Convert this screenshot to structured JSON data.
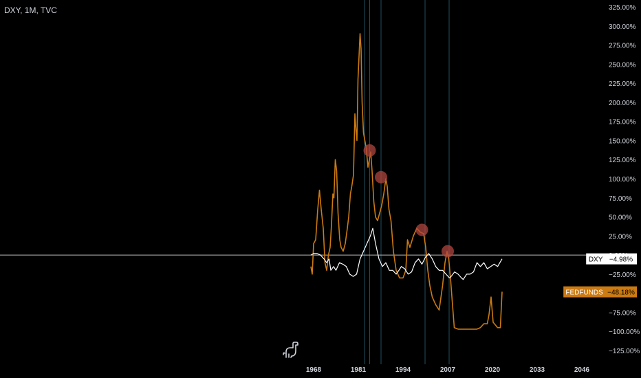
{
  "header": {
    "title": "DXY, 1M, TVC"
  },
  "colors": {
    "background": "#000000",
    "dxy": "#ffffff",
    "fedfunds": "#cc7a12",
    "vline": "#1f4f5f",
    "marker": "#b0453f",
    "axis_text": "#d1d4dc"
  },
  "icons": {
    "logo": "dinosaur-icon"
  },
  "chart_data": {
    "type": "line",
    "title": "DXY, 1M, TVC",
    "xlabel": "",
    "ylabel": "",
    "x_ticks": [
      "1968",
      "1981",
      "1994",
      "2007",
      "2020",
      "2033",
      "2046"
    ],
    "x_tick_values": [
      1968,
      1981,
      1994,
      2007,
      2020,
      2033,
      2046
    ],
    "y_ticks": [
      "325.00%",
      "300.00%",
      "275.00%",
      "250.00%",
      "225.00%",
      "200.00%",
      "175.00%",
      "150.00%",
      "125.00%",
      "100.00%",
      "75.00%",
      "50.00%",
      "25.00%",
      "0.00%",
      "−25.00%",
      "−50.00%",
      "−75.00%",
      "−100.00%",
      "−125.00%"
    ],
    "y_tick_values": [
      325,
      300,
      275,
      250,
      225,
      200,
      175,
      150,
      125,
      100,
      75,
      50,
      25,
      0,
      -25,
      -50,
      -75,
      -100,
      -125
    ],
    "ylim": [
      -130,
      330
    ],
    "xlim": [
      1967,
      2051
    ],
    "grid": false,
    "series": [
      {
        "name": "DXY",
        "last_label": "−4.98%",
        "last_value": -4.98,
        "x": [
          1967.2,
          1968.0,
          1969.0,
          1970.0,
          1971.0,
          1971.8,
          1972.5,
          1973.0,
          1973.8,
          1974.5,
          1975.5,
          1976.5,
          1977.5,
          1978.5,
          1979.5,
          1980.5,
          1981.5,
          1982.5,
          1983.5,
          1984.5,
          1985.2,
          1986.0,
          1987.0,
          1988.0,
          1989.0,
          1990.0,
          1991.0,
          1992.0,
          1992.8,
          1993.5,
          1994.5,
          1995.5,
          1996.5,
          1997.5,
          1998.5,
          1999.5,
          2000.5,
          2001.5,
          2002.5,
          2003.5,
          2004.5,
          2005.5,
          2006.5,
          2007.5,
          2008.0,
          2009.0,
          2010.0,
          2011.0,
          2011.5,
          2012.5,
          2013.5,
          2014.5,
          2015.5,
          2016.5,
          2017.5,
          2018.5,
          2019.5,
          2020.5,
          2021.5,
          2022.8
        ],
        "y": [
          0,
          2,
          2,
          0,
          -5,
          -10,
          -5,
          -20,
          -15,
          -20,
          -10,
          -12,
          -15,
          -25,
          -28,
          -25,
          -5,
          5,
          15,
          25,
          35,
          15,
          -5,
          -15,
          -10,
          -20,
          -20,
          -25,
          -20,
          -15,
          -18,
          -25,
          -22,
          -10,
          -5,
          -12,
          -3,
          2,
          -5,
          -15,
          -20,
          -20,
          -25,
          -30,
          -28,
          -22,
          -25,
          -30,
          -32,
          -25,
          -25,
          -22,
          -10,
          -15,
          -10,
          -18,
          -15,
          -12,
          -15,
          -5
        ]
      },
      {
        "name": "FEDFUNDS",
        "last_label": "−48.18%",
        "last_value": -48.18,
        "x": [
          1967.2,
          1967.6,
          1968.0,
          1968.6,
          1969.2,
          1969.7,
          1970.2,
          1970.8,
          1971.3,
          1971.8,
          1972.3,
          1972.8,
          1973.2,
          1973.6,
          1973.9,
          1974.3,
          1974.7,
          1975.1,
          1975.6,
          1976.0,
          1976.6,
          1977.2,
          1977.8,
          1978.2,
          1978.7,
          1979.1,
          1979.6,
          1980.0,
          1980.3,
          1980.6,
          1980.9,
          1981.2,
          1981.5,
          1981.8,
          1982.1,
          1982.5,
          1982.9,
          1983.3,
          1983.8,
          1984.2,
          1984.6,
          1985.0,
          1985.5,
          1986.0,
          1986.6,
          1987.2,
          1987.8,
          1988.4,
          1989.0,
          1989.4,
          1989.9,
          1990.5,
          1991.2,
          1992.0,
          1993.0,
          1994.0,
          1994.8,
          1995.3,
          1996.0,
          1997.0,
          1998.0,
          1999.0,
          2000.0,
          2000.6,
          2001.2,
          2001.8,
          2002.5,
          2003.5,
          2004.5,
          2005.5,
          2006.2,
          2006.8,
          2007.3,
          2007.8,
          2008.3,
          2008.9,
          2010.0,
          2012.0,
          2014.0,
          2015.5,
          2016.5,
          2017.5,
          2018.5,
          2019.0,
          2019.6,
          2020.2,
          2021.5,
          2022.3,
          2022.8
        ],
        "y": [
          -15,
          -25,
          15,
          20,
          60,
          85,
          60,
          35,
          -10,
          -20,
          0,
          10,
          40,
          80,
          75,
          125,
          110,
          55,
          20,
          10,
          5,
          15,
          35,
          50,
          80,
          90,
          105,
          185,
          165,
          150,
          230,
          260,
          290,
          270,
          200,
          160,
          150,
          140,
          115,
          125,
          135,
          110,
          70,
          50,
          45,
          55,
          65,
          80,
          100,
          90,
          60,
          45,
          5,
          -20,
          -30,
          -30,
          -20,
          20,
          10,
          25,
          35,
          30,
          28,
          10,
          -20,
          -40,
          -55,
          -65,
          -72,
          -40,
          -10,
          5,
          -5,
          -30,
          -60,
          -95,
          -97,
          -97,
          -97,
          -97,
          -95,
          -90,
          -90,
          -78,
          -55,
          -88,
          -95,
          -95,
          -48
        ]
      }
    ],
    "vertical_lines_x": [
      1982.8,
      1984.3,
      1987.6,
      2000.4,
      2007.4
    ],
    "markers": [
      {
        "x": 1984.3,
        "y": 137
      },
      {
        "x": 1987.6,
        "y": 102
      },
      {
        "x": 1999.5,
        "y": 33
      },
      {
        "x": 2007.0,
        "y": 5
      }
    ]
  }
}
